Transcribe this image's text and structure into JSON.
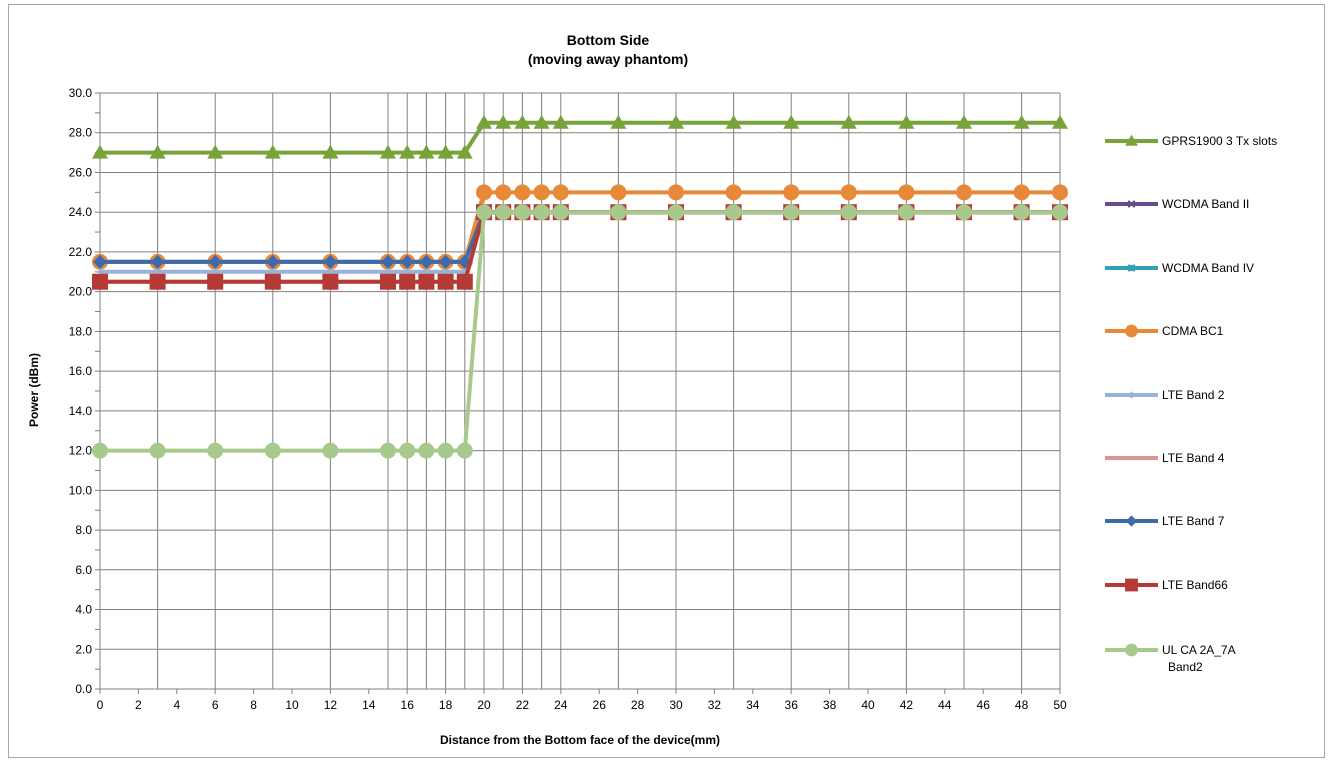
{
  "chart_data": {
    "type": "line",
    "title": "Bottom Side",
    "subtitle": "(moving away phantom)",
    "xlabel": "Distance from the Bottom face of the device(mm)",
    "ylabel": "Power (dBm)",
    "ylim": [
      0,
      30
    ],
    "xlim": [
      0,
      50
    ],
    "x_ticks": [
      "0",
      "2",
      "4",
      "6",
      "8",
      "10",
      "12",
      "14",
      "16",
      "18",
      "20",
      "22",
      "24",
      "26",
      "28",
      "30",
      "32",
      "34",
      "36",
      "38",
      "40",
      "42",
      "44",
      "46",
      "48",
      "50"
    ],
    "y_ticks": [
      "0.0",
      "2.0",
      "4.0",
      "6.0",
      "8.0",
      "10.0",
      "12.0",
      "14.0",
      "16.0",
      "18.0",
      "20.0",
      "22.0",
      "24.0",
      "26.0",
      "28.0",
      "30.0"
    ],
    "grid": true,
    "legend_position": "right",
    "x": [
      0,
      3,
      6,
      9,
      12,
      15,
      16,
      17,
      18,
      19,
      20,
      21,
      22,
      23,
      24,
      27,
      30,
      33,
      36,
      39,
      42,
      45,
      48,
      50
    ],
    "series": [
      {
        "name": "GPRS1900 3 Tx slots",
        "color": "#77a33a",
        "marker": "triangle",
        "values": [
          27,
          27,
          27,
          27,
          27,
          27,
          27,
          27,
          27,
          27,
          28.5,
          28.5,
          28.5,
          28.5,
          28.5,
          28.5,
          28.5,
          28.5,
          28.5,
          28.5,
          28.5,
          28.5,
          28.5,
          28.5
        ]
      },
      {
        "name": "WCDMA Band II",
        "color": "#6a4a8c",
        "marker": "x",
        "values": [
          21.5,
          21.5,
          21.5,
          21.5,
          21.5,
          21.5,
          21.5,
          21.5,
          21.5,
          21.5,
          24,
          24,
          24,
          24,
          24,
          24,
          24,
          24,
          24,
          24,
          24,
          24,
          24,
          24
        ]
      },
      {
        "name": "WCDMA Band IV",
        "color": "#2fa0b5",
        "marker": "star",
        "values": [
          21.5,
          21.5,
          21.5,
          21.5,
          21.5,
          21.5,
          21.5,
          21.5,
          21.5,
          21.5,
          24,
          24,
          24,
          24,
          24,
          24,
          24,
          24,
          24,
          24,
          24,
          24,
          24,
          24
        ]
      },
      {
        "name": "CDMA BC1",
        "color": "#e8893a",
        "marker": "circle",
        "values": [
          21.5,
          21.5,
          21.5,
          21.5,
          21.5,
          21.5,
          21.5,
          21.5,
          21.5,
          21.5,
          25,
          25,
          25,
          25,
          25,
          25,
          25,
          25,
          25,
          25,
          25,
          25,
          25,
          25
        ]
      },
      {
        "name": "LTE Band 2",
        "color": "#98b2d8",
        "marker": "plus",
        "values": [
          21,
          21,
          21,
          21,
          21,
          21,
          21,
          21,
          21,
          21,
          24,
          24,
          24,
          24,
          24,
          24,
          24,
          24,
          24,
          24,
          24,
          24,
          24,
          24
        ]
      },
      {
        "name": "LTE Band 4",
        "color": "#d99695",
        "marker": "none",
        "values": [
          20.5,
          20.5,
          20.5,
          20.5,
          20.5,
          20.5,
          20.5,
          20.5,
          20.5,
          20.5,
          24,
          24,
          24,
          24,
          24,
          24,
          24,
          24,
          24,
          24,
          24,
          24,
          24,
          24
        ]
      },
      {
        "name": "LTE Band 7",
        "color": "#3c6aab",
        "marker": "diamond",
        "values": [
          21.5,
          21.5,
          21.5,
          21.5,
          21.5,
          21.5,
          21.5,
          21.5,
          21.5,
          21.5,
          24,
          24,
          24,
          24,
          24,
          24,
          24,
          24,
          24,
          24,
          24,
          24,
          24,
          24
        ]
      },
      {
        "name": "LTE Band66",
        "color": "#b53a36",
        "marker": "square",
        "values": [
          20.5,
          20.5,
          20.5,
          20.5,
          20.5,
          20.5,
          20.5,
          20.5,
          20.5,
          20.5,
          24,
          24,
          24,
          24,
          24,
          24,
          24,
          24,
          24,
          24,
          24,
          24,
          24,
          24
        ]
      },
      {
        "name": "UL CA 2A_7A Band2",
        "color": "#a8c98c",
        "marker": "circle",
        "values": [
          12,
          12,
          12,
          12,
          12,
          12,
          12,
          12,
          12,
          12,
          24,
          24,
          24,
          24,
          24,
          24,
          24,
          24,
          24,
          24,
          24,
          24,
          24,
          24
        ]
      }
    ]
  }
}
